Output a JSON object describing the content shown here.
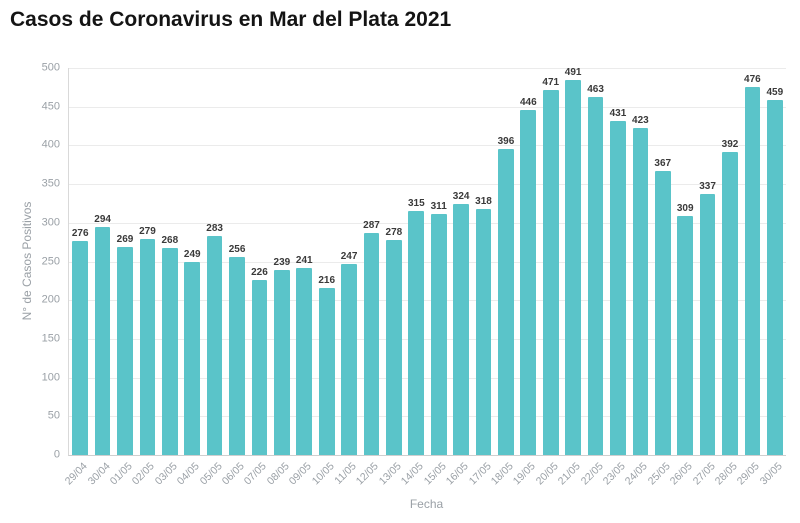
{
  "chart_data": {
    "type": "bar",
    "title": "Casos de Coronavirus en Mar del Plata 2021",
    "xlabel": "Fecha",
    "ylabel": "N° de Casos Positivos",
    "categories": [
      "29/04",
      "30/04",
      "01/05",
      "02/05",
      "03/05",
      "04/05",
      "05/05",
      "06/05",
      "07/05",
      "08/05",
      "09/05",
      "10/05",
      "11/05",
      "12/05",
      "13/05",
      "14/05",
      "15/05",
      "16/05",
      "17/05",
      "18/05",
      "19/05",
      "20/05",
      "21/05",
      "22/05",
      "23/05",
      "24/05",
      "25/05",
      "26/05",
      "27/05",
      "28/05",
      "29/05",
      "30/05"
    ],
    "values": [
      276,
      294,
      269,
      279,
      268,
      249,
      283,
      256,
      226,
      239,
      241,
      216,
      247,
      287,
      278,
      315,
      311,
      324,
      318,
      396,
      446,
      471,
      491,
      463,
      431,
      423,
      367,
      309,
      337,
      392,
      476,
      459
    ],
    "ylim": [
      0,
      500
    ],
    "ytick_step": 50,
    "grid": true,
    "legend": false,
    "bar_color": "#5ac4c9",
    "value_label_color": "#3a3a3a",
    "axis_text_color": "#9aa0a6",
    "title_color": "#141414"
  }
}
